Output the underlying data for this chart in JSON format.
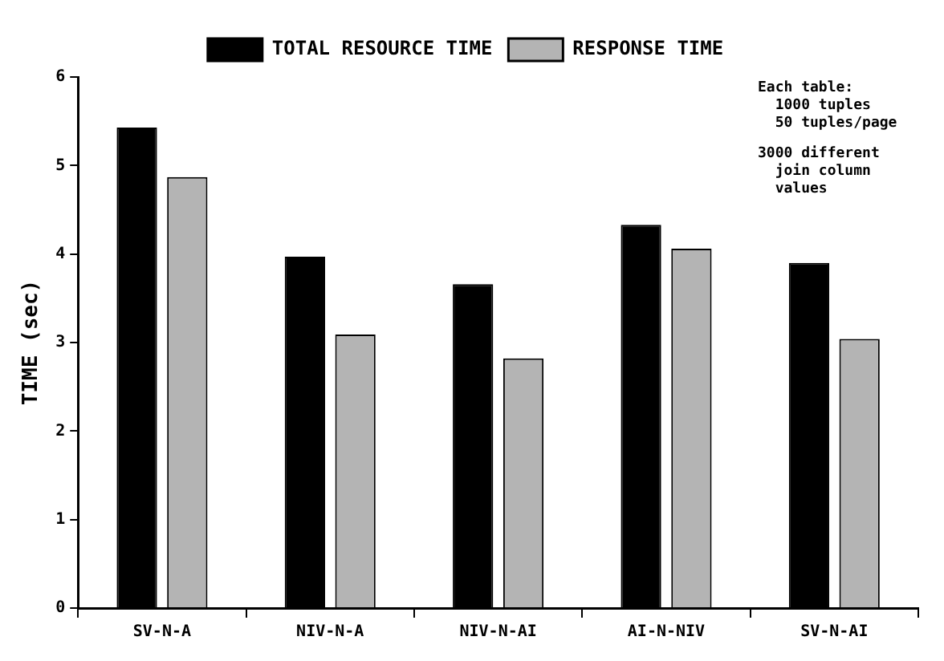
{
  "chart_data": {
    "type": "bar",
    "ylabel": "TIME (sec)",
    "categories": [
      "SV-N-A",
      "NIV-N-A",
      "NIV-N-AI",
      "AI-N-NIV",
      "SV-N-AI"
    ],
    "series": [
      {
        "name": "TOTAL RESOURCE TIME",
        "color": "#000000",
        "values": [
          5.43,
          3.97,
          3.66,
          4.33,
          3.9
        ]
      },
      {
        "name": "RESPONSE TIME",
        "color": "#b4b4b4",
        "values": [
          4.87,
          3.09,
          2.82,
          4.06,
          3.04
        ]
      }
    ],
    "ylim": [
      0,
      6
    ],
    "yticks": [
      0,
      1,
      2,
      3,
      4,
      5,
      6
    ],
    "grid": false,
    "legend": "top",
    "annotations": [
      "Each table:\n  1000 tuples\n  50 tuples/page",
      "3000 different\n  join column\n  values"
    ]
  }
}
